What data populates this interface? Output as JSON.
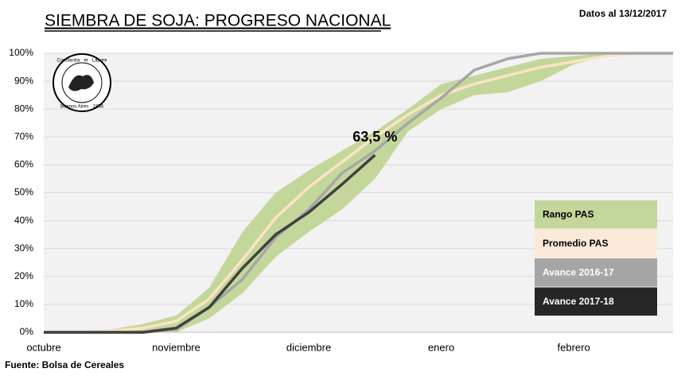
{
  "chart_data": {
    "type": "band-line",
    "title": "SIEMBRA DE SOJA: PROGRESO NACIONAL",
    "subtitle": "Datos al 13/12/2017",
    "source": "Fuente: Bolsa de Cereales",
    "logo": {
      "top": "Constantia · et · Labore",
      "bottom": "Buenos Aires · 1854"
    },
    "categories": [
      "octubre",
      null,
      null,
      null,
      "noviembre",
      null,
      null,
      null,
      "diciembre",
      null,
      null,
      null,
      "enero",
      null,
      null,
      null,
      "febrero",
      null,
      null,
      null
    ],
    "ylim": [
      0,
      100
    ],
    "yticks": [
      {
        "value": 0,
        "label": "0%"
      },
      {
        "value": 10,
        "label": "10%"
      },
      {
        "value": 20,
        "label": "20%"
      },
      {
        "value": 30,
        "label": "30%"
      },
      {
        "value": 40,
        "label": "40%"
      },
      {
        "value": 50,
        "label": "50%"
      },
      {
        "value": 60,
        "label": "60%"
      },
      {
        "value": 70,
        "label": "70%"
      },
      {
        "value": 80,
        "label": "80%"
      },
      {
        "value": 90,
        "label": "90%"
      },
      {
        "value": 100,
        "label": "100%"
      }
    ],
    "grid": true,
    "legend": "right",
    "series": [
      {
        "name": "Rango PAS",
        "color": "#c4d79b",
        "kind": "band",
        "values": [
          0,
          0,
          1,
          3,
          6,
          16,
          36,
          50,
          58,
          65,
          72,
          80,
          89,
          92,
          95,
          98,
          99,
          100,
          100,
          100
        ],
        "lower": [
          0,
          0,
          0,
          0,
          0,
          5,
          14,
          27,
          36,
          44,
          55,
          72,
          80,
          85,
          86,
          90,
          96,
          99,
          100,
          100
        ]
      },
      {
        "name": "Promedio PAS",
        "color": "#fce4c4",
        "legend_color": "#fde9d9",
        "kind": "line",
        "values": [
          0,
          0,
          0.5,
          1.5,
          4,
          12,
          26,
          41,
          52,
          61,
          70,
          78,
          85,
          89,
          92,
          95,
          97,
          99,
          100,
          100
        ]
      },
      {
        "name": "Avance 2016-17",
        "color": "#a6a6a6",
        "kind": "line",
        "values": [
          0,
          0,
          0,
          0,
          1,
          9,
          19,
          34,
          44,
          57,
          65,
          75,
          84,
          94,
          98,
          100,
          100,
          100,
          100,
          100
        ]
      },
      {
        "name": "Avance 2017-18",
        "color": "#404040",
        "legend_color": "#262626",
        "kind": "line",
        "values": [
          0,
          0,
          0,
          0,
          1.5,
          9,
          23,
          35,
          43,
          53,
          63.5,
          null,
          null,
          null,
          null,
          null,
          null,
          null,
          null,
          null
        ],
        "value_labels": [
          null,
          null,
          null,
          null,
          null,
          null,
          null,
          null,
          null,
          null,
          "63,5 %",
          null,
          null,
          null,
          null,
          null,
          null,
          null,
          null,
          null
        ]
      }
    ]
  }
}
